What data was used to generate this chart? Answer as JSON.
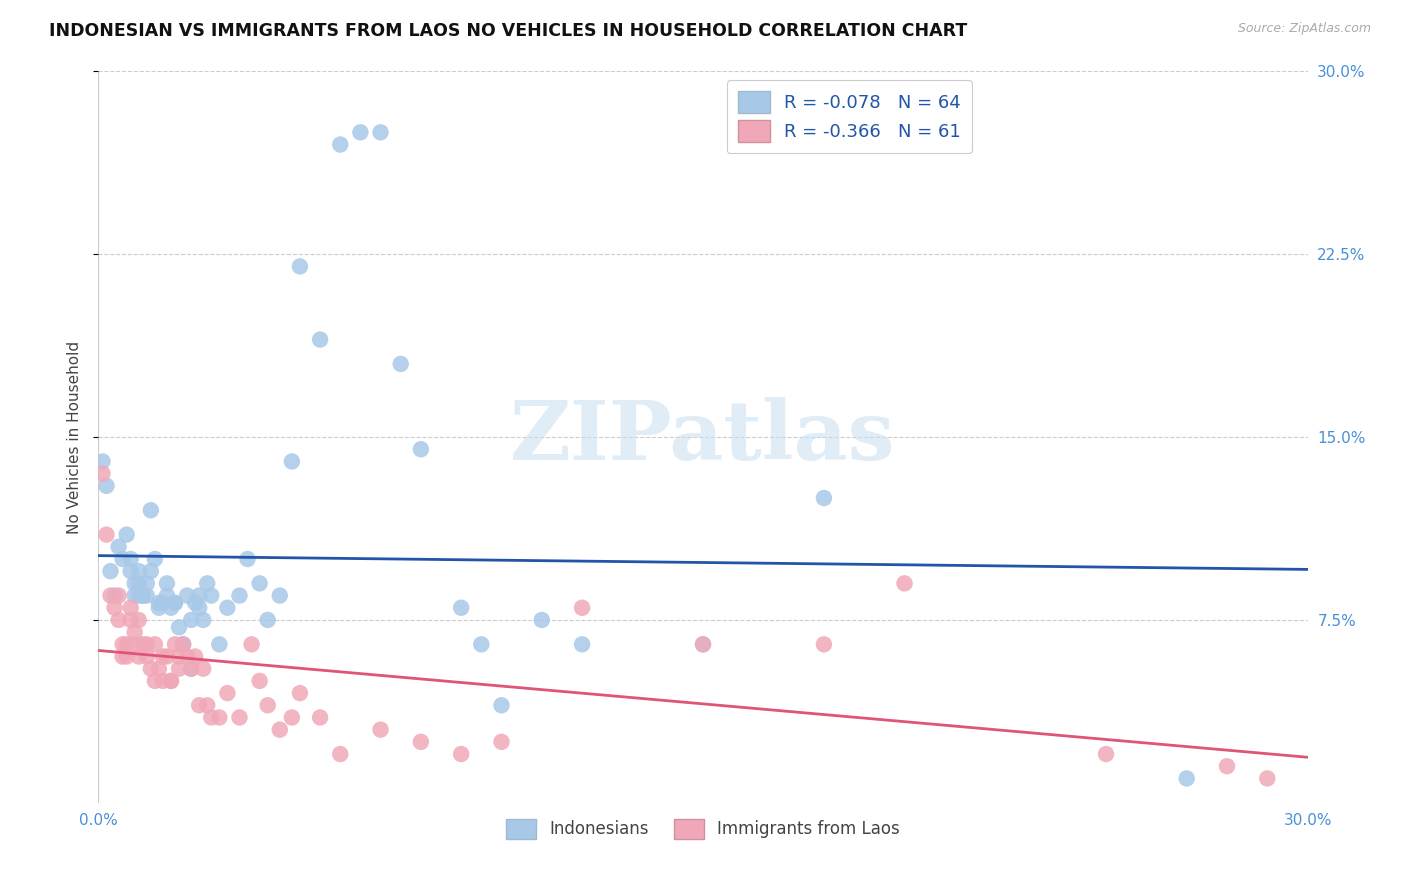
{
  "title": "INDONESIAN VS IMMIGRANTS FROM LAOS NO VEHICLES IN HOUSEHOLD CORRELATION CHART",
  "source": "Source: ZipAtlas.com",
  "ylabel": "No Vehicles in Household",
  "xlim": [
    0.0,
    0.3
  ],
  "ylim": [
    0.0,
    0.3
  ],
  "indonesian_R": -0.078,
  "indonesian_N": 64,
  "laos_R": -0.366,
  "laos_N": 61,
  "color_indonesian": "#a8c8e8",
  "color_laos": "#f0a8b8",
  "color_line_indonesian": "#2255aa",
  "color_line_laos": "#e05575",
  "color_right_tick": "#4a90d9",
  "color_bottom_tick": "#4a90d9",
  "watermark_text": "ZIPatlas",
  "watermark_color": "#cce0f0",
  "indonesian_x": [
    0.001,
    0.002,
    0.003,
    0.004,
    0.005,
    0.006,
    0.007,
    0.008,
    0.009,
    0.01,
    0.01,
    0.011,
    0.012,
    0.013,
    0.014,
    0.015,
    0.016,
    0.017,
    0.018,
    0.019,
    0.02,
    0.021,
    0.022,
    0.023,
    0.024,
    0.025,
    0.026,
    0.027,
    0.028,
    0.03,
    0.032,
    0.035,
    0.037,
    0.04,
    0.042,
    0.045,
    0.048,
    0.05,
    0.055,
    0.06,
    0.065,
    0.07,
    0.075,
    0.08,
    0.09,
    0.095,
    0.1,
    0.11,
    0.12,
    0.15,
    0.008,
    0.009,
    0.01,
    0.011,
    0.012,
    0.013,
    0.015,
    0.017,
    0.019,
    0.021,
    0.023,
    0.025,
    0.18,
    0.27
  ],
  "indonesian_y": [
    0.14,
    0.13,
    0.095,
    0.085,
    0.105,
    0.1,
    0.11,
    0.1,
    0.09,
    0.095,
    0.085,
    0.085,
    0.09,
    0.12,
    0.1,
    0.082,
    0.082,
    0.09,
    0.08,
    0.082,
    0.072,
    0.065,
    0.085,
    0.075,
    0.082,
    0.08,
    0.075,
    0.09,
    0.085,
    0.065,
    0.08,
    0.085,
    0.1,
    0.09,
    0.075,
    0.085,
    0.14,
    0.22,
    0.19,
    0.27,
    0.275,
    0.275,
    0.18,
    0.145,
    0.08,
    0.065,
    0.04,
    0.075,
    0.065,
    0.065,
    0.095,
    0.085,
    0.09,
    0.085,
    0.085,
    0.095,
    0.08,
    0.085,
    0.082,
    0.065,
    0.055,
    0.085,
    0.125,
    0.01
  ],
  "laos_x": [
    0.001,
    0.002,
    0.003,
    0.004,
    0.005,
    0.006,
    0.007,
    0.008,
    0.009,
    0.01,
    0.011,
    0.012,
    0.013,
    0.014,
    0.015,
    0.016,
    0.017,
    0.018,
    0.019,
    0.02,
    0.021,
    0.022,
    0.023,
    0.024,
    0.025,
    0.026,
    0.027,
    0.028,
    0.03,
    0.032,
    0.035,
    0.038,
    0.04,
    0.042,
    0.045,
    0.048,
    0.05,
    0.055,
    0.06,
    0.07,
    0.08,
    0.09,
    0.1,
    0.12,
    0.15,
    0.18,
    0.2,
    0.25,
    0.28,
    0.29,
    0.005,
    0.006,
    0.007,
    0.008,
    0.009,
    0.01,
    0.012,
    0.014,
    0.016,
    0.018,
    0.02
  ],
  "laos_y": [
    0.135,
    0.11,
    0.085,
    0.08,
    0.085,
    0.065,
    0.065,
    0.08,
    0.07,
    0.075,
    0.065,
    0.065,
    0.055,
    0.065,
    0.055,
    0.05,
    0.06,
    0.05,
    0.065,
    0.055,
    0.065,
    0.06,
    0.055,
    0.06,
    0.04,
    0.055,
    0.04,
    0.035,
    0.035,
    0.045,
    0.035,
    0.065,
    0.05,
    0.04,
    0.03,
    0.035,
    0.045,
    0.035,
    0.02,
    0.03,
    0.025,
    0.02,
    0.025,
    0.08,
    0.065,
    0.065,
    0.09,
    0.02,
    0.015,
    0.01,
    0.075,
    0.06,
    0.06,
    0.075,
    0.065,
    0.06,
    0.06,
    0.05,
    0.06,
    0.05,
    0.06
  ]
}
